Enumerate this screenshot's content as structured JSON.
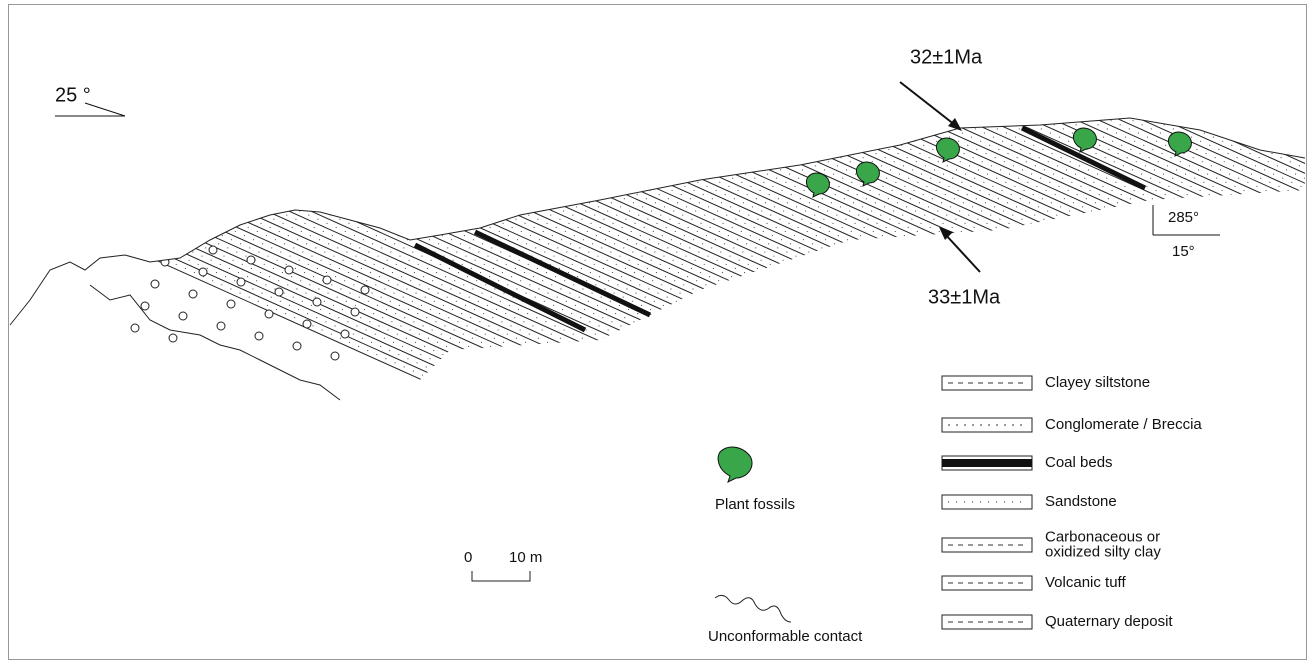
{
  "orientation_left": {
    "angle": "25 °"
  },
  "ages": {
    "upper": "32±1Ma",
    "lower": "33±1Ma"
  },
  "orientation_right": {
    "strike": "285°",
    "dip": "15°"
  },
  "plant_fossils": "Plant fossils",
  "scale": {
    "start": "0",
    "end": "10 m"
  },
  "contact": "Unconformable contact",
  "legend": [
    {
      "lines": [
        "Clayey siltstone"
      ]
    },
    {
      "lines": [
        "Conglomerate / Breccia"
      ]
    },
    {
      "lines": [
        "Coal beds"
      ]
    },
    {
      "lines": [
        "Sandstone"
      ]
    },
    {
      "lines": [
        "Carbonaceous or",
        "oxidized silty clay"
      ]
    },
    {
      "lines": [
        "Volcanic tuff"
      ]
    },
    {
      "lines": [
        "Quaternary deposit"
      ]
    }
  ]
}
